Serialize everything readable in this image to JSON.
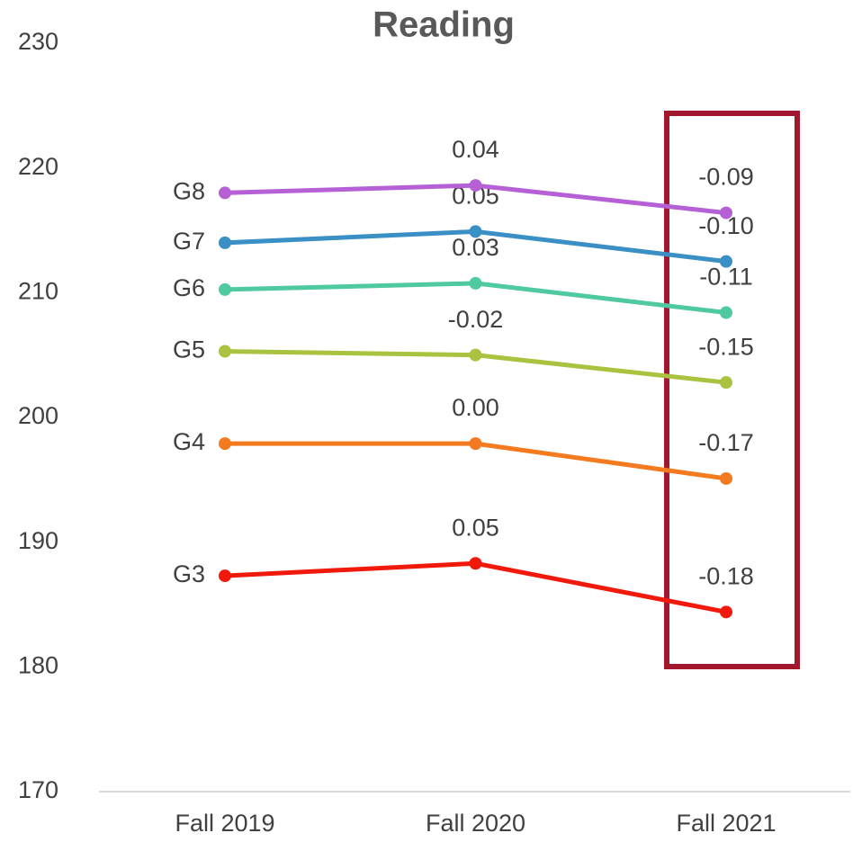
{
  "chart_data": {
    "type": "line",
    "title": "Reading",
    "categories": [
      "Fall 2019",
      "Fall 2020",
      "Fall 2021"
    ],
    "ylim": [
      170,
      230
    ],
    "yticks": [
      170,
      180,
      190,
      200,
      210,
      220,
      230
    ],
    "grid": false,
    "series": [
      {
        "name": "G3",
        "color": "#f0190c",
        "values": [
          187.3,
          188.3,
          184.4
        ],
        "annotations": [
          "0.05",
          "-0.18"
        ]
      },
      {
        "name": "G4",
        "color": "#f47a20",
        "values": [
          197.9,
          197.9,
          195.1
        ],
        "annotations": [
          "0.00",
          "-0.17"
        ]
      },
      {
        "name": "G5",
        "color": "#a9c23f",
        "values": [
          205.3,
          205.0,
          202.8
        ],
        "annotations": [
          "-0.02",
          "-0.15"
        ]
      },
      {
        "name": "G6",
        "color": "#4fc9a0",
        "values": [
          210.25,
          210.75,
          208.4
        ],
        "annotations": [
          "0.03",
          "-0.11"
        ]
      },
      {
        "name": "G7",
        "color": "#3a8fc4",
        "values": [
          214.0,
          214.9,
          212.5
        ],
        "annotations": [
          "0.05",
          "-0.10"
        ]
      },
      {
        "name": "G8",
        "color": "#b660d6",
        "values": [
          218.0,
          218.6,
          216.4
        ],
        "annotations": [
          "0.04",
          "-0.09"
        ]
      }
    ]
  }
}
